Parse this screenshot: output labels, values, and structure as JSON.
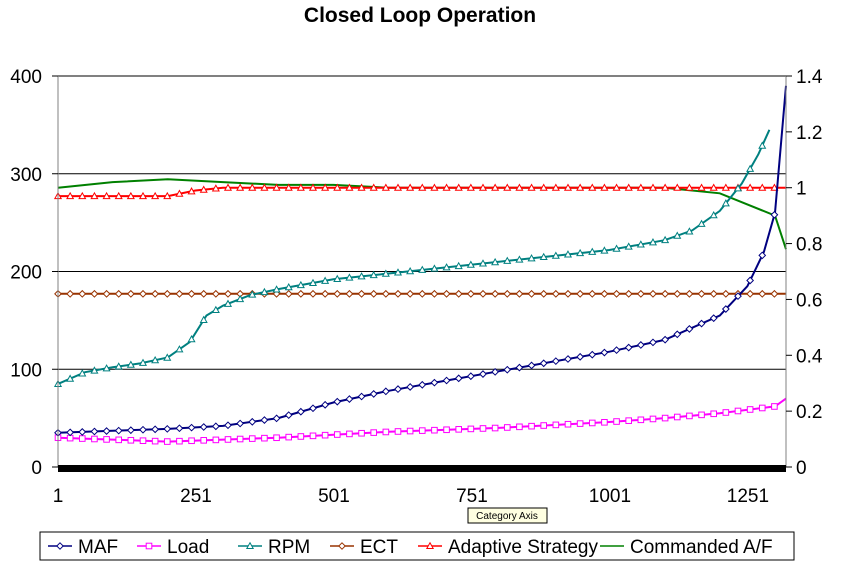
{
  "chart_data": {
    "type": "line",
    "title": "Closed Loop Operation",
    "x_axis": {
      "tooltip": "Category Axis",
      "range": [
        1,
        1320
      ],
      "tick_labels": [
        "1",
        "251",
        "501",
        "751",
        "1001",
        "1251"
      ],
      "tick_values": [
        1,
        251,
        501,
        751,
        1001,
        1251
      ]
    },
    "y_axis_left": {
      "range": [
        0,
        400
      ],
      "tick_labels": [
        "0",
        "100",
        "200",
        "300",
        "400"
      ],
      "tick_values": [
        0,
        100,
        200,
        300,
        400
      ],
      "gridlines": [
        100,
        200,
        300,
        400
      ]
    },
    "y_axis_right": {
      "range": [
        0,
        1.4
      ],
      "tick_labels": [
        "0",
        "0.2",
        "0.4",
        "0.6",
        "0.8",
        "1",
        "1.2",
        "1.4"
      ],
      "tick_values": [
        0,
        0.2,
        0.4,
        0.6,
        0.8,
        1.0,
        1.2,
        1.4
      ]
    },
    "legend_position": "bottom",
    "series": [
      {
        "name": "MAF",
        "axis": "left",
        "color": "#000080",
        "marker": "diamond",
        "x": [
          1,
          100,
          200,
          300,
          400,
          500,
          600,
          700,
          800,
          900,
          1000,
          1100,
          1200,
          1250,
          1280,
          1300,
          1320
        ],
        "y": [
          35,
          37,
          39,
          42,
          50,
          66,
          78,
          88,
          98,
          108,
          118,
          130,
          155,
          185,
          220,
          260,
          390
        ]
      },
      {
        "name": "Load",
        "axis": "left",
        "color": "#ff00ff",
        "marker": "square",
        "x": [
          1,
          100,
          200,
          300,
          400,
          500,
          600,
          700,
          800,
          900,
          1000,
          1100,
          1200,
          1300,
          1320
        ],
        "y": [
          30,
          28,
          26,
          28,
          30,
          33,
          36,
          38,
          40,
          43,
          46,
          50,
          55,
          62,
          70
        ]
      },
      {
        "name": "RPM",
        "axis": "left",
        "color": "#008080",
        "marker": "triangle",
        "x": [
          1,
          50,
          100,
          150,
          200,
          240,
          270,
          300,
          350,
          400,
          500,
          600,
          700,
          800,
          900,
          1000,
          1100,
          1150,
          1200,
          1240,
          1270,
          1290
        ],
        "y": [
          85,
          97,
          102,
          106,
          112,
          128,
          155,
          165,
          176,
          182,
          192,
          198,
          204,
          210,
          216,
          222,
          232,
          242,
          262,
          290,
          320,
          345
        ]
      },
      {
        "name": "ECT",
        "axis": "right",
        "color": "#993300",
        "marker": "diamond",
        "x": [
          1,
          100,
          200,
          300,
          400,
          500,
          600,
          700,
          800,
          900,
          1000,
          1100,
          1200,
          1300,
          1320
        ],
        "y": [
          0.62,
          0.62,
          0.62,
          0.62,
          0.62,
          0.62,
          0.62,
          0.62,
          0.62,
          0.62,
          0.62,
          0.62,
          0.62,
          0.62,
          0.62
        ]
      },
      {
        "name": "Adaptive Strategy",
        "axis": "right",
        "color": "#ff0000",
        "marker": "triangle",
        "x": [
          1,
          100,
          200,
          250,
          300,
          400,
          500,
          600,
          700,
          800,
          900,
          1000,
          1100,
          1200,
          1300,
          1320
        ],
        "y": [
          0.97,
          0.97,
          0.97,
          0.99,
          1.0,
          1.0,
          1.0,
          1.0,
          1.0,
          1.0,
          1.0,
          1.0,
          1.0,
          1.0,
          1.0,
          1.0
        ]
      },
      {
        "name": "Commanded A/F",
        "axis": "right",
        "color": "#008000",
        "marker": "none",
        "x": [
          1,
          100,
          200,
          300,
          400,
          500,
          600,
          700,
          800,
          900,
          1000,
          1100,
          1200,
          1300,
          1320
        ],
        "y": [
          1.0,
          1.02,
          1.03,
          1.02,
          1.01,
          1.01,
          1.0,
          1.0,
          1.0,
          1.0,
          1.0,
          1.0,
          0.98,
          0.9,
          0.78
        ]
      }
    ]
  }
}
